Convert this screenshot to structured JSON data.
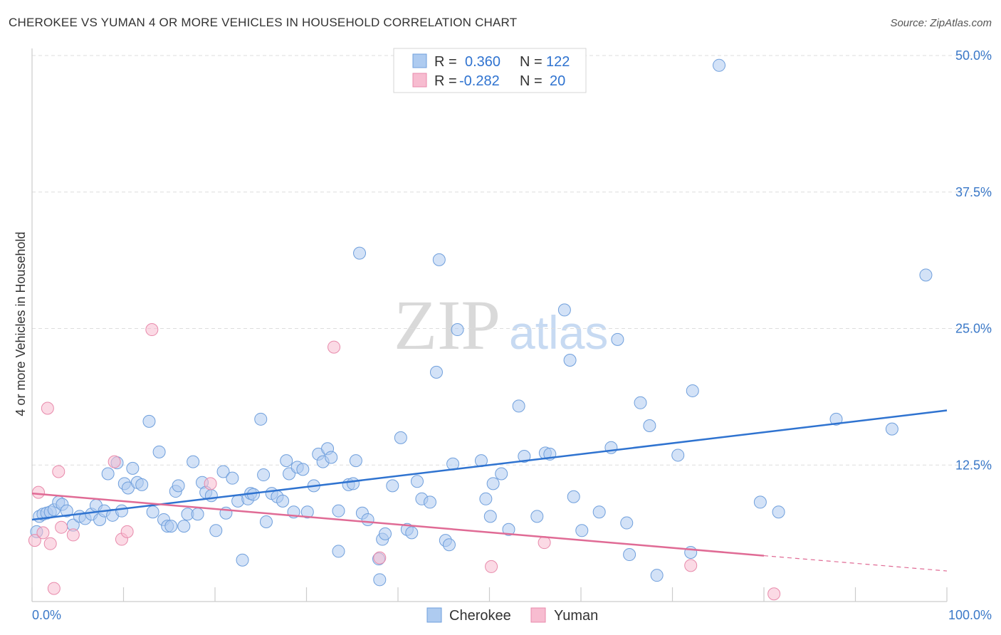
{
  "header": {
    "title": "CHEROKEE VS YUMAN 4 OR MORE VEHICLES IN HOUSEHOLD CORRELATION CHART",
    "source": "Source: ZipAtlas.com"
  },
  "watermark": {
    "zip": "ZIP",
    "atlas": "atlas"
  },
  "colors": {
    "cherokee_fill": "#aecbf0",
    "cherokee_stroke": "#6f9fdc",
    "cherokee_line": "#2f73d0",
    "yuman_fill": "#f7bcd0",
    "yuman_stroke": "#e88aab",
    "yuman_line": "#e06b95",
    "tick_label": "#3a78c8",
    "grid": "#dddddd"
  },
  "stats_legend": {
    "rows": [
      {
        "r_label": "R =",
        "r_value": "0.360",
        "n_label": "N =",
        "n_value": "122"
      },
      {
        "r_label": "R =",
        "r_value": "-0.282",
        "n_label": "N =",
        "n_value": "20"
      }
    ]
  },
  "chart_data": {
    "type": "scatter",
    "title": "CHEROKEE VS YUMAN 4 OR MORE VEHICLES IN HOUSEHOLD CORRELATION CHART",
    "xlabel": "",
    "ylabel": "4 or more Vehicles in Household",
    "xlim": [
      0,
      100
    ],
    "ylim": [
      0,
      50
    ],
    "x_tick_labels": [
      "0.0%",
      "100.0%"
    ],
    "y_ticks": [
      12.5,
      25.0,
      37.5,
      50.0
    ],
    "y_tick_labels": [
      "12.5%",
      "25.0%",
      "37.5%",
      "50.0%"
    ],
    "grid": true,
    "legend_position": "bottom-center",
    "series": [
      {
        "name": "Cherokee",
        "R": 0.36,
        "N": 122,
        "trend": {
          "x": [
            0,
            100
          ],
          "y": [
            7.5,
            17.5
          ]
        },
        "points": [
          [
            0.5,
            6.4
          ],
          [
            0.8,
            7.8
          ],
          [
            1.2,
            8.0
          ],
          [
            1.6,
            8.1
          ],
          [
            2.0,
            8.2
          ],
          [
            2.4,
            8.4
          ],
          [
            2.9,
            9.1
          ],
          [
            3.3,
            8.9
          ],
          [
            3.8,
            8.3
          ],
          [
            4.5,
            7.0
          ],
          [
            5.2,
            7.8
          ],
          [
            5.8,
            7.6
          ],
          [
            6.5,
            8.0
          ],
          [
            7.0,
            8.8
          ],
          [
            7.4,
            7.5
          ],
          [
            7.9,
            8.3
          ],
          [
            8.3,
            11.7
          ],
          [
            8.8,
            7.9
          ],
          [
            9.3,
            12.7
          ],
          [
            9.8,
            8.3
          ],
          [
            10.1,
            10.8
          ],
          [
            10.5,
            10.4
          ],
          [
            11.0,
            12.2
          ],
          [
            11.5,
            10.9
          ],
          [
            12.0,
            10.7
          ],
          [
            12.8,
            16.5
          ],
          [
            13.2,
            8.2
          ],
          [
            13.9,
            13.7
          ],
          [
            14.4,
            7.5
          ],
          [
            14.8,
            6.9
          ],
          [
            15.2,
            6.9
          ],
          [
            15.7,
            10.1
          ],
          [
            16.0,
            10.6
          ],
          [
            16.6,
            6.9
          ],
          [
            17.0,
            8.0
          ],
          [
            17.6,
            12.8
          ],
          [
            18.1,
            8.0
          ],
          [
            18.6,
            10.9
          ],
          [
            19.0,
            10.0
          ],
          [
            19.6,
            9.7
          ],
          [
            20.1,
            6.5
          ],
          [
            20.9,
            11.9
          ],
          [
            21.2,
            8.1
          ],
          [
            21.9,
            11.3
          ],
          [
            22.5,
            9.2
          ],
          [
            23.0,
            3.8
          ],
          [
            23.6,
            9.4
          ],
          [
            23.9,
            9.9
          ],
          [
            24.2,
            9.8
          ],
          [
            25.0,
            16.7
          ],
          [
            25.3,
            11.6
          ],
          [
            25.6,
            7.3
          ],
          [
            26.2,
            9.9
          ],
          [
            26.8,
            9.6
          ],
          [
            27.4,
            9.2
          ],
          [
            27.8,
            12.9
          ],
          [
            28.1,
            11.7
          ],
          [
            28.6,
            8.2
          ],
          [
            29.0,
            12.3
          ],
          [
            29.6,
            12.1
          ],
          [
            30.1,
            8.2
          ],
          [
            30.8,
            10.6
          ],
          [
            31.3,
            13.5
          ],
          [
            31.8,
            12.8
          ],
          [
            32.3,
            14.0
          ],
          [
            32.7,
            13.2
          ],
          [
            33.5,
            8.3
          ],
          [
            33.5,
            4.6
          ],
          [
            34.6,
            10.7
          ],
          [
            35.1,
            10.8
          ],
          [
            35.4,
            12.9
          ],
          [
            35.8,
            31.9
          ],
          [
            36.1,
            8.1
          ],
          [
            36.7,
            7.5
          ],
          [
            37.9,
            3.9
          ],
          [
            38.0,
            2.0
          ],
          [
            38.3,
            5.7
          ],
          [
            38.6,
            6.2
          ],
          [
            39.4,
            10.6
          ],
          [
            40.3,
            15.0
          ],
          [
            41.0,
            6.6
          ],
          [
            41.5,
            6.3
          ],
          [
            42.1,
            11.0
          ],
          [
            42.6,
            9.4
          ],
          [
            43.5,
            9.1
          ],
          [
            44.2,
            21.0
          ],
          [
            44.5,
            31.3
          ],
          [
            45.2,
            5.6
          ],
          [
            45.6,
            5.2
          ],
          [
            46.0,
            12.6
          ],
          [
            46.5,
            24.9
          ],
          [
            49.1,
            12.9
          ],
          [
            49.6,
            9.4
          ],
          [
            50.1,
            7.8
          ],
          [
            50.4,
            10.8
          ],
          [
            51.3,
            11.7
          ],
          [
            52.1,
            6.6
          ],
          [
            53.2,
            17.9
          ],
          [
            53.8,
            13.3
          ],
          [
            55.2,
            7.8
          ],
          [
            56.1,
            13.6
          ],
          [
            56.6,
            13.5
          ],
          [
            58.2,
            26.7
          ],
          [
            58.8,
            22.1
          ],
          [
            59.2,
            9.6
          ],
          [
            60.1,
            6.5
          ],
          [
            62.0,
            8.2
          ],
          [
            63.3,
            14.1
          ],
          [
            64.0,
            24.0
          ],
          [
            65.0,
            7.2
          ],
          [
            65.3,
            4.3
          ],
          [
            66.5,
            18.2
          ],
          [
            67.5,
            16.1
          ],
          [
            68.3,
            2.4
          ],
          [
            70.6,
            13.4
          ],
          [
            72.0,
            4.5
          ],
          [
            72.2,
            19.3
          ],
          [
            75.1,
            49.1
          ],
          [
            79.6,
            9.1
          ],
          [
            81.6,
            8.2
          ],
          [
            87.9,
            16.7
          ],
          [
            94.0,
            15.8
          ],
          [
            97.7,
            29.9
          ]
        ]
      },
      {
        "name": "Yuman",
        "R": -0.282,
        "N": 20,
        "trend": {
          "x": [
            0,
            80
          ],
          "y": [
            9.9,
            4.2
          ]
        },
        "trend_dashed": {
          "x": [
            80,
            100
          ],
          "y": [
            4.2,
            2.8
          ]
        },
        "points": [
          [
            0.3,
            5.6
          ],
          [
            0.7,
            10.0
          ],
          [
            1.2,
            6.3
          ],
          [
            1.7,
            17.7
          ],
          [
            2.0,
            5.3
          ],
          [
            2.4,
            1.2
          ],
          [
            2.9,
            11.9
          ],
          [
            3.2,
            6.8
          ],
          [
            4.5,
            6.1
          ],
          [
            9.0,
            12.8
          ],
          [
            9.8,
            5.7
          ],
          [
            10.4,
            6.4
          ],
          [
            13.1,
            24.9
          ],
          [
            19.5,
            10.8
          ],
          [
            33.0,
            23.3
          ],
          [
            38.0,
            4.0
          ],
          [
            50.2,
            3.2
          ],
          [
            56.0,
            5.4
          ],
          [
            72.0,
            3.3
          ],
          [
            81.1,
            0.7
          ]
        ]
      }
    ]
  },
  "bottom_legend": {
    "items": [
      {
        "label": "Cherokee"
      },
      {
        "label": "Yuman"
      }
    ]
  }
}
